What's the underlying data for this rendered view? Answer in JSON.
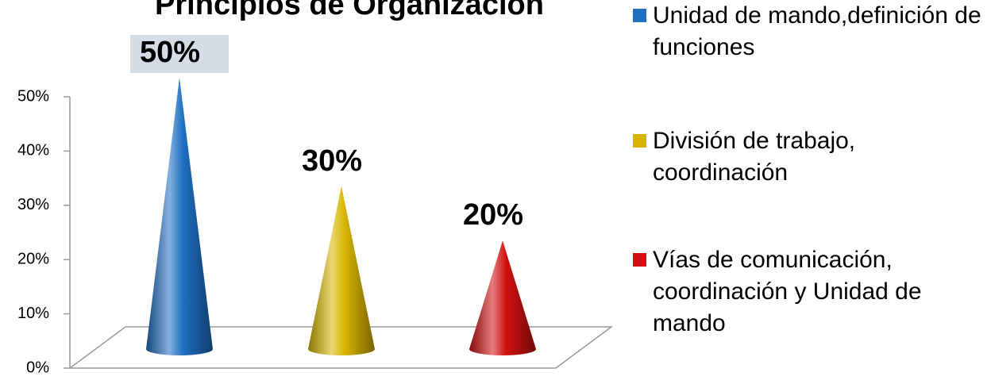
{
  "chart_data": {
    "type": "cone",
    "title": "Principios de Organización",
    "categories": [
      "Unidad de mando,definición de funciones",
      "División de trabajo, coordinación",
      "Vías de comunicación, coordinación y Unidad de mando"
    ],
    "values": [
      50,
      30,
      20
    ],
    "value_labels": [
      "50%",
      "30%",
      "20%"
    ],
    "colors": [
      "#1f6fc2",
      "#d8b400",
      "#d01010"
    ],
    "ylim": [
      0,
      50
    ],
    "yticks": [
      {
        "value": 0,
        "label": "0%"
      },
      {
        "value": 10,
        "label": "10%"
      },
      {
        "value": 20,
        "label": "20%"
      },
      {
        "value": 30,
        "label": "30%"
      },
      {
        "value": 40,
        "label": "40%"
      },
      {
        "value": 50,
        "label": "50%"
      }
    ],
    "legend": "right"
  }
}
